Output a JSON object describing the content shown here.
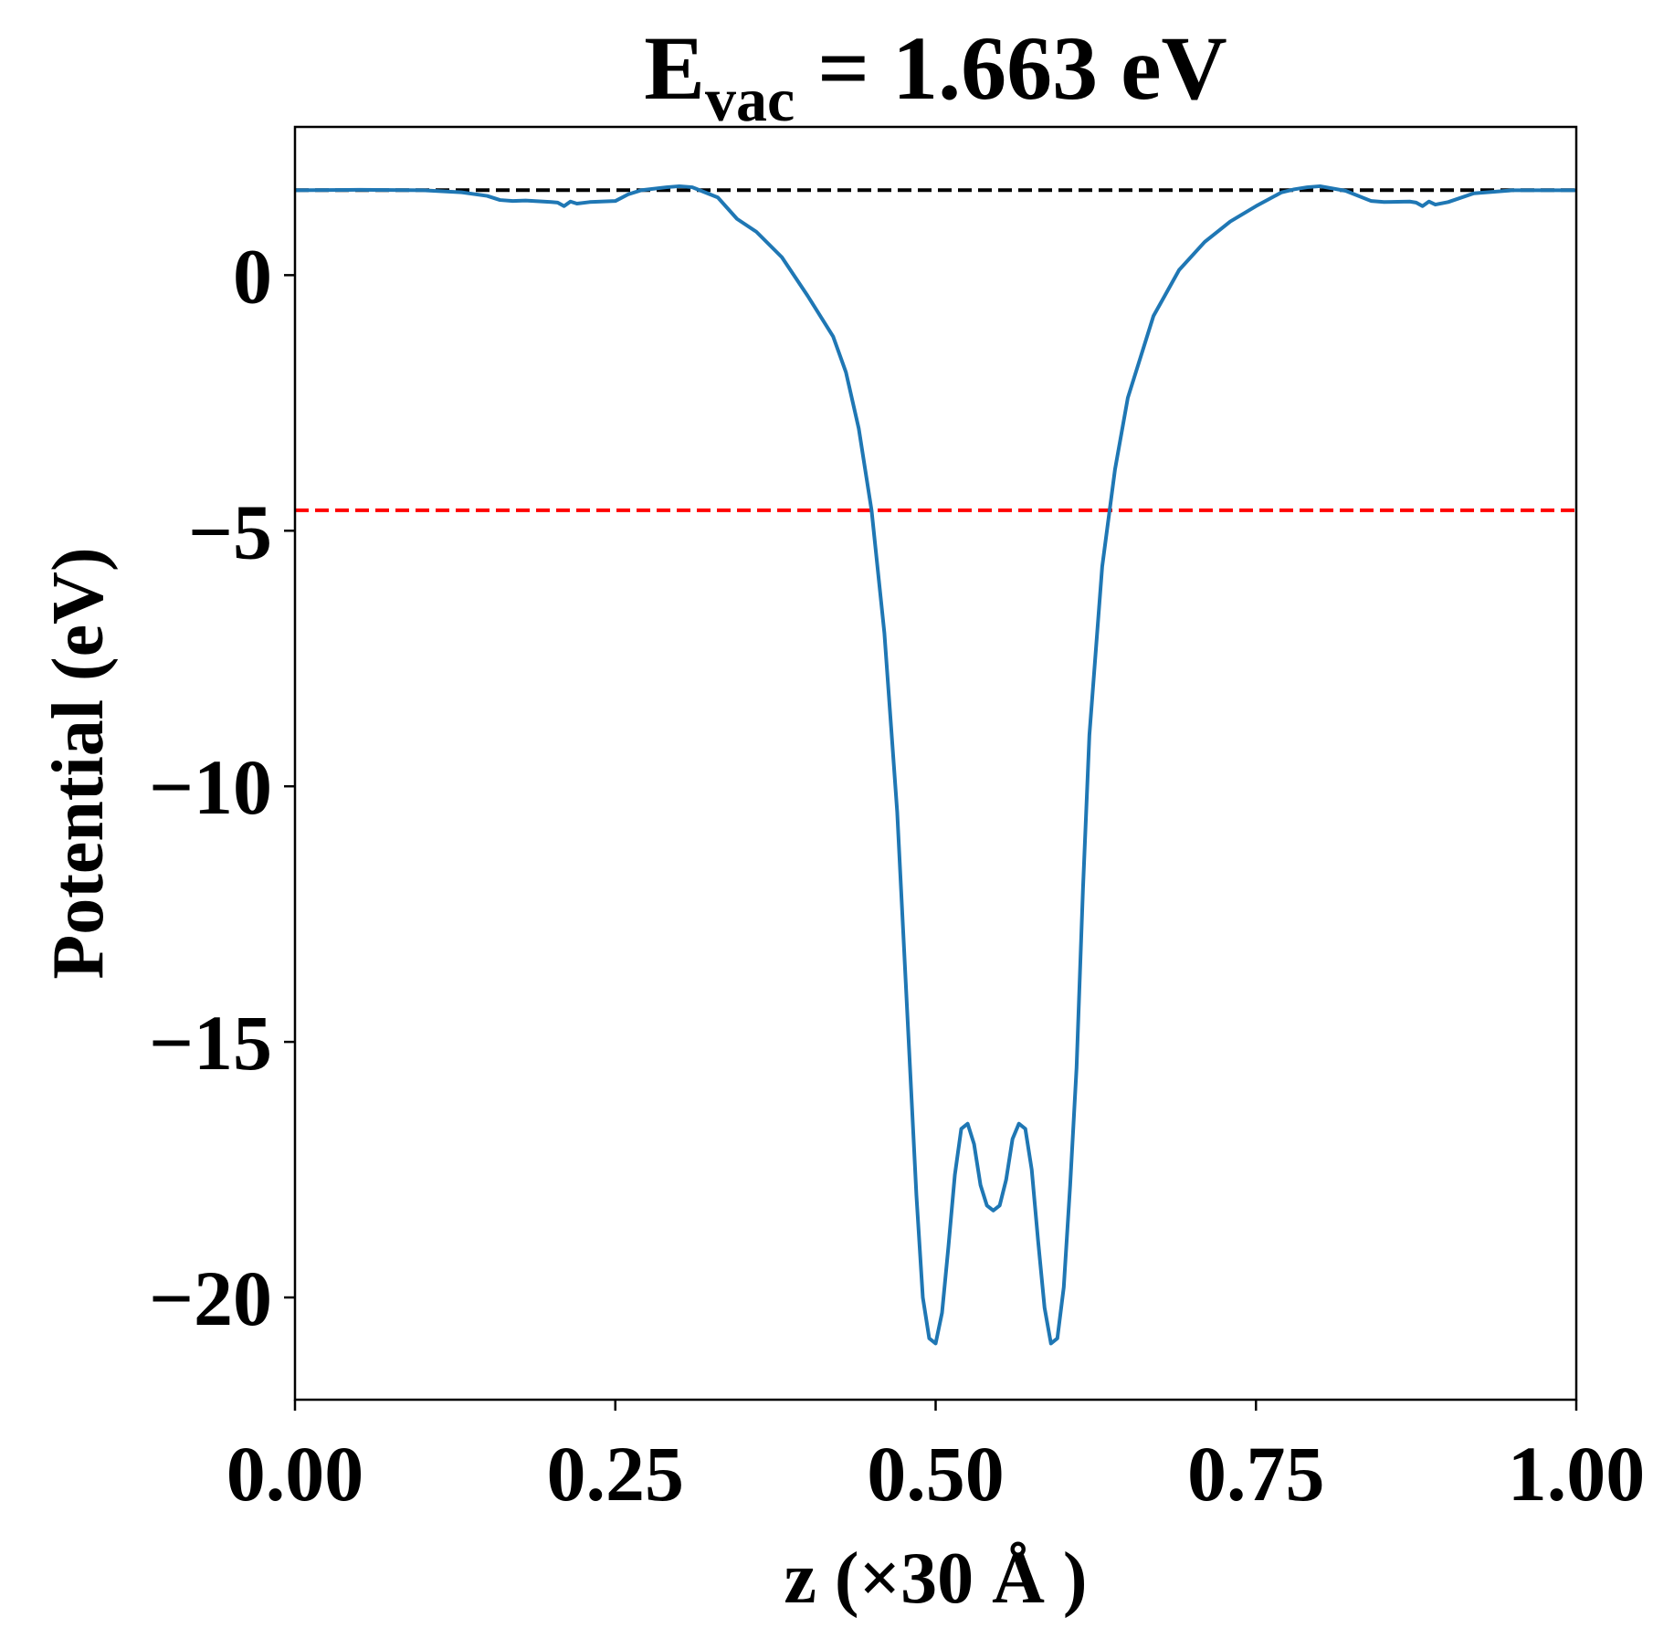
{
  "chart_data": {
    "type": "line",
    "title": {
      "main": "E",
      "subscript": "vac",
      "rest": " = 1.663 eV"
    },
    "xlabel": "z (×30 Å )",
    "ylabel": "Potential (eV)",
    "xlim": [
      0,
      1
    ],
    "ylim": [
      -22.0,
      2.9
    ],
    "xticks": [
      0,
      0.25,
      0.5,
      0.75,
      1.0
    ],
    "xtick_labels": [
      "0.00",
      "0.25",
      "0.50",
      "0.75",
      "1.00"
    ],
    "yticks": [
      0,
      -5,
      -10,
      -15,
      -20
    ],
    "ytick_labels": [
      "0",
      "−5",
      "−10",
      "−15",
      "−20"
    ],
    "grid": false,
    "reference_lines": [
      {
        "y": 1.663,
        "color": "#000000",
        "style": "dashed"
      },
      {
        "y": -4.6,
        "color": "#ff0000",
        "style": "dashed"
      }
    ],
    "series": [
      {
        "color": "#1f77b4",
        "x": [
          0.0,
          0.05,
          0.1,
          0.13,
          0.15,
          0.16,
          0.17,
          0.18,
          0.2,
          0.205,
          0.21,
          0.215,
          0.22,
          0.23,
          0.25,
          0.26,
          0.27,
          0.29,
          0.3,
          0.31,
          0.33,
          0.345,
          0.36,
          0.38,
          0.4,
          0.42,
          0.43,
          0.44,
          0.45,
          0.46,
          0.47,
          0.48,
          0.485,
          0.49,
          0.495,
          0.5,
          0.505,
          0.51,
          0.515,
          0.52,
          0.525,
          0.53,
          0.535,
          0.54,
          0.545,
          0.55,
          0.555,
          0.56,
          0.565,
          0.57,
          0.575,
          0.58,
          0.585,
          0.59,
          0.595,
          0.6,
          0.605,
          0.61,
          0.615,
          0.62,
          0.63,
          0.64,
          0.65,
          0.66,
          0.67,
          0.69,
          0.71,
          0.73,
          0.75,
          0.77,
          0.78,
          0.79,
          0.8,
          0.82,
          0.84,
          0.85,
          0.87,
          0.875,
          0.88,
          0.885,
          0.89,
          0.9,
          0.92,
          0.95,
          1.0
        ],
        "y": [
          1.66,
          1.67,
          1.66,
          1.62,
          1.55,
          1.47,
          1.45,
          1.46,
          1.43,
          1.42,
          1.35,
          1.44,
          1.4,
          1.43,
          1.45,
          1.58,
          1.66,
          1.72,
          1.74,
          1.72,
          1.52,
          1.1,
          0.85,
          0.35,
          -0.4,
          -1.2,
          -1.9,
          -3.0,
          -4.6,
          -7.0,
          -10.5,
          -15.5,
          -18.0,
          -20.0,
          -20.8,
          -20.9,
          -20.3,
          -19.0,
          -17.6,
          -16.7,
          -16.6,
          -17.0,
          -17.8,
          -18.2,
          -18.3,
          -18.2,
          -17.7,
          -16.9,
          -16.6,
          -16.7,
          -17.5,
          -18.9,
          -20.2,
          -20.9,
          -20.8,
          -19.8,
          -17.8,
          -15.5,
          -12.0,
          -9.0,
          -5.7,
          -3.8,
          -2.4,
          -1.6,
          -0.8,
          0.1,
          0.65,
          1.05,
          1.35,
          1.62,
          1.68,
          1.72,
          1.74,
          1.65,
          1.45,
          1.43,
          1.44,
          1.42,
          1.35,
          1.44,
          1.38,
          1.43,
          1.6,
          1.66,
          1.66
        ]
      }
    ]
  }
}
